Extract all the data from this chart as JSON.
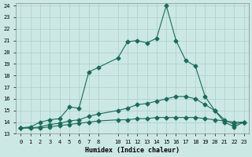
{
  "xlabel": "Humidex (Indice chaleur)",
  "bg_color": "#cce8e4",
  "grid_color": "#aacfcb",
  "line_color": "#1a6b5a",
  "xlim": [
    -0.5,
    23.5
  ],
  "ylim": [
    13,
    24.2
  ],
  "xticks": [
    0,
    1,
    2,
    3,
    4,
    5,
    6,
    7,
    8,
    10,
    11,
    12,
    13,
    14,
    15,
    16,
    17,
    18,
    19,
    20,
    21,
    22,
    23
  ],
  "yticks": [
    13,
    14,
    15,
    16,
    17,
    18,
    19,
    20,
    21,
    22,
    23,
    24
  ],
  "series1": {
    "x": [
      0,
      1,
      2,
      3,
      4,
      5,
      6,
      7,
      8,
      10,
      11,
      12,
      13,
      14,
      15,
      16,
      17,
      18,
      19,
      20,
      21,
      22,
      23
    ],
    "y": [
      13.5,
      13.6,
      14.0,
      14.2,
      14.3,
      15.3,
      15.2,
      18.3,
      18.7,
      19.5,
      20.9,
      21.0,
      20.8,
      21.2,
      24.0,
      21.0,
      19.3,
      18.8,
      16.2,
      15.0,
      14.0,
      13.6,
      14.0
    ]
  },
  "series2": {
    "x": [
      0,
      1,
      2,
      3,
      4,
      5,
      6,
      7,
      8,
      10,
      11,
      12,
      13,
      14,
      15,
      16,
      17,
      18,
      19,
      20,
      21,
      22,
      23
    ],
    "y": [
      13.5,
      13.5,
      13.6,
      13.8,
      13.9,
      14.1,
      14.2,
      14.5,
      14.7,
      15.0,
      15.2,
      15.5,
      15.6,
      15.8,
      16.0,
      16.2,
      16.2,
      16.0,
      15.5,
      15.0,
      14.2,
      13.8,
      14.0
    ]
  },
  "series3": {
    "x": [
      0,
      1,
      2,
      3,
      4,
      5,
      6,
      7,
      8,
      10,
      11,
      12,
      13,
      14,
      15,
      16,
      17,
      18,
      19,
      20,
      21,
      22,
      23
    ],
    "y": [
      13.5,
      13.5,
      13.5,
      13.6,
      13.7,
      13.8,
      13.9,
      14.0,
      14.1,
      14.2,
      14.2,
      14.3,
      14.3,
      14.4,
      14.4,
      14.4,
      14.4,
      14.4,
      14.3,
      14.2,
      14.1,
      14.0,
      14.0
    ]
  }
}
